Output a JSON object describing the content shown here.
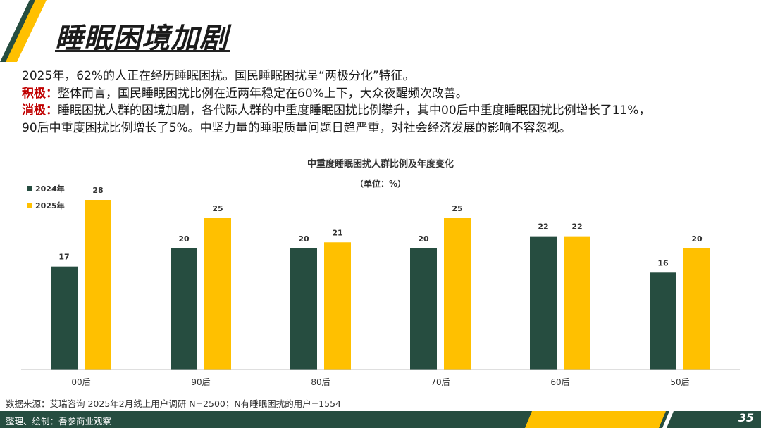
{
  "page": {
    "title": "睡眠困境加剧",
    "intro": {
      "line1": "2025年，62%的人正在经历睡眠困扰。国民睡眠困扰呈“两极分化”特征。",
      "positive_tag": "积极：",
      "positive_text": "整体而言，国民睡眠困扰比例在近两年稳定在60%上下，大众夜醒频次改善。",
      "negative_tag": "消极：",
      "negative_text": "睡眠困扰人群的困境加剧，各代际人群的中重度睡眠困扰比例攀升，其中00后中重度睡眠困扰比例增长了11%，",
      "negative_text2": "90后中重度困扰比例增长了5%。中坚力量的睡眠质量问题日趋严重，对社会经济发展的影响不容忽视。"
    },
    "source": "数据来源：艾瑞咨询 2025年2月线上用户调研 N=2500；N有睡眠困扰的用户=1554",
    "footer": "整理、绘制：吾参商业观察",
    "page_number": "35",
    "colors": {
      "dark_green": "#264d40",
      "gold": "#ffc000",
      "red": "#c00000"
    }
  },
  "chart_data": {
    "type": "bar",
    "title": "中重度睡眠困扰人群比例及年度变化",
    "subtitle": "（单位：%）",
    "categories": [
      "00后",
      "90后",
      "80后",
      "70后",
      "60后",
      "50后"
    ],
    "series": [
      {
        "name": "2024年",
        "color": "#264d40",
        "values": [
          17,
          20,
          20,
          20,
          22,
          16
        ]
      },
      {
        "name": "2025年",
        "color": "#ffc000",
        "values": [
          28,
          25,
          21,
          25,
          22,
          20
        ]
      }
    ],
    "ylim": [
      0,
      28
    ],
    "legend": "top-left",
    "grid": false
  }
}
